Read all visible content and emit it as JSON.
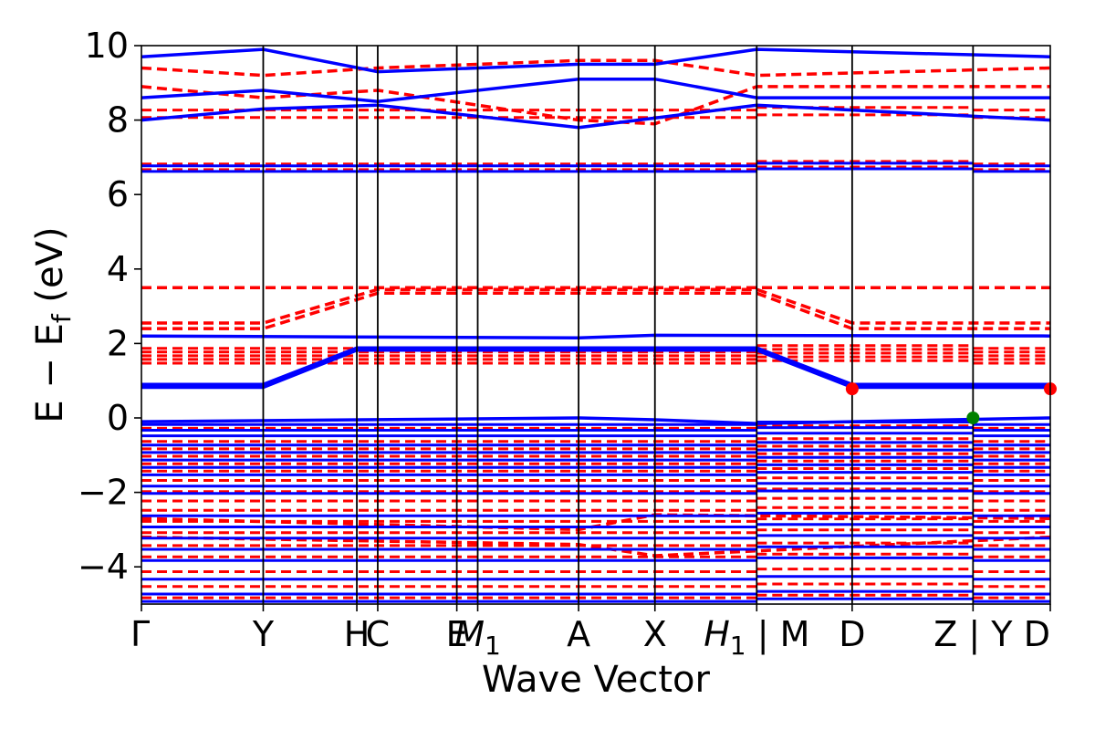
{
  "chart_data": {
    "type": "line",
    "title": "",
    "xlabel": "Wave Vector",
    "ylabel": "E − E",
    "ylabel_sub": "f",
    "ylabel_unit": "(eV)",
    "ylim": [
      -5,
      10
    ],
    "yticks": [
      -4,
      -2,
      0,
      2,
      4,
      6,
      8,
      10
    ],
    "ytick_labels": [
      "−4",
      "−2",
      "0",
      "2",
      "4",
      "6",
      "8",
      "10"
    ],
    "grid": false,
    "legend": "none",
    "kpoints": [
      {
        "label": "Γ",
        "k": 0.0
      },
      {
        "label": "Y",
        "k": 0.134
      },
      {
        "label": "H",
        "k": 0.237
      },
      {
        "label": "C",
        "k": 0.26
      },
      {
        "label": "E",
        "k": 0.347
      },
      {
        "label": "M",
        "sub": "1",
        "k": 0.37
      },
      {
        "label": "A",
        "k": 0.481
      },
      {
        "label": "X",
        "k": 0.565
      },
      {
        "label": "H",
        "sub": "1",
        "suffix": " | M",
        "k": 0.677
      },
      {
        "label": "D",
        "k": 0.782
      },
      {
        "label": "Z | Y",
        "k": 0.915
      },
      {
        "label": "D",
        "k": 1.0
      }
    ],
    "break_kpoints": [
      0.677,
      0.915
    ],
    "colors": {
      "solid_series": "#0000ff",
      "dashed_series": "#ff0000",
      "red_marker": "#ff0000",
      "green_marker": "#008000"
    },
    "flat_solid_bands": [
      -4.9,
      -4.7,
      -4.3,
      -3.8,
      -3.5,
      -3.2,
      -2.9,
      -2.6,
      -2.0,
      -1.8,
      -1.5,
      -1.3,
      -1.1,
      -0.9,
      -0.7,
      -0.45,
      -0.3,
      -0.15,
      6.65,
      6.8
    ],
    "flat_dashed_bands": [
      -4.8,
      -4.5,
      -4.1,
      -3.7,
      -3.4,
      -3.05,
      -2.75,
      -2.45,
      -2.2,
      -1.95,
      -1.65,
      -1.4,
      -1.2,
      -1.0,
      -0.8,
      -0.6,
      -0.25,
      1.5,
      1.6,
      1.7,
      1.8,
      1.9,
      6.7,
      6.85,
      8.1,
      8.3
    ],
    "solid_bands": [
      {
        "k": [
          0,
          0.134,
          0.237,
          0.677,
          0.782,
          1.0
        ],
        "E": [
          0.82,
          0.82,
          1.82,
          1.82,
          0.82,
          0.82
        ]
      },
      {
        "k": [
          0,
          0.134,
          0.237,
          0.677,
          0.782,
          1.0
        ],
        "E": [
          0.9,
          0.9,
          1.88,
          1.88,
          0.9,
          0.9
        ]
      },
      {
        "k": [
          0,
          0.481,
          0.565,
          1.0
        ],
        "E": [
          2.2,
          2.15,
          2.22,
          2.2
        ]
      },
      {
        "k": [
          0,
          0.481,
          0.565,
          0.677,
          1.0
        ],
        "E": [
          -0.1,
          0.0,
          -0.05,
          -0.15,
          0.0
        ]
      },
      {
        "k": [
          0,
          0.134,
          0.26,
          0.481,
          0.677,
          1.0
        ],
        "E": [
          8.0,
          8.3,
          8.4,
          7.8,
          8.4,
          8.0
        ]
      },
      {
        "k": [
          0,
          0.134,
          0.26,
          0.481,
          0.565,
          0.677,
          1.0
        ],
        "E": [
          8.6,
          8.8,
          8.5,
          9.1,
          9.1,
          8.6,
          8.6
        ]
      },
      {
        "k": [
          0,
          0.134,
          0.26,
          0.481,
          0.565,
          0.677,
          1.0
        ],
        "E": [
          9.7,
          9.9,
          9.3,
          9.5,
          9.5,
          9.9,
          9.7
        ]
      }
    ],
    "dashed_bands": [
      {
        "k": [
          0,
          0.134,
          0.26,
          0.677,
          0.782,
          1.0
        ],
        "E": [
          2.4,
          2.4,
          3.35,
          3.35,
          2.4,
          2.4
        ]
      },
      {
        "k": [
          0,
          0.134,
          0.26,
          0.677,
          0.782,
          1.0
        ],
        "E": [
          2.55,
          2.55,
          3.45,
          3.45,
          2.55,
          2.55
        ]
      },
      {
        "k": [
          0,
          1.0
        ],
        "E": [
          3.5,
          3.5
        ]
      },
      {
        "k": [
          0,
          0.134,
          0.26,
          0.481,
          0.565,
          0.677,
          1.0
        ],
        "E": [
          8.9,
          8.6,
          8.8,
          8.0,
          7.9,
          8.9,
          8.9
        ]
      },
      {
        "k": [
          0,
          0.134,
          0.26,
          0.481,
          0.565,
          0.677,
          1.0
        ],
        "E": [
          9.4,
          9.2,
          9.4,
          9.6,
          9.6,
          9.2,
          9.4
        ]
      },
      {
        "k": [
          0,
          0.481,
          0.565,
          1.0
        ],
        "E": [
          -2.7,
          -3.0,
          -2.6,
          -2.7
        ]
      },
      {
        "k": [
          0,
          0.481,
          0.565,
          1.0
        ],
        "E": [
          -3.2,
          -3.4,
          -3.7,
          -3.2
        ]
      }
    ],
    "markers": [
      {
        "k": 0.782,
        "E": 0.78,
        "color": "#ff0000"
      },
      {
        "k": 1.0,
        "E": 0.78,
        "color": "#ff0000"
      },
      {
        "k": 0.915,
        "E": 0.0,
        "color": "#008000"
      }
    ]
  }
}
